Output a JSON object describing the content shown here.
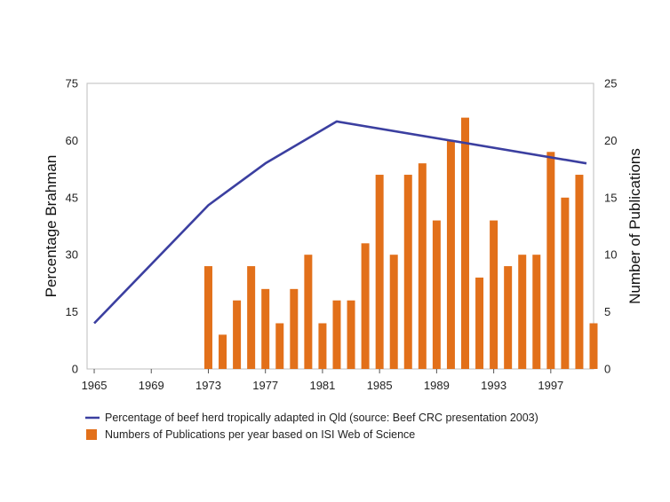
{
  "chart_data": {
    "type": "bar",
    "colors": {
      "bar": "#e2701a",
      "line": "#3b3fa0",
      "frame": "#bdbdbd"
    },
    "ylabel_left": "Percentage Brahman",
    "ylabel_right": "Number of Publications",
    "xlim": [
      1964.5,
      2000
    ],
    "ylim_left": [
      0,
      75
    ],
    "ylim_right": [
      0,
      25
    ],
    "yticks_left": [
      "0",
      "15",
      "30",
      "45",
      "60",
      "75"
    ],
    "yticks_left_values": [
      0,
      15,
      30,
      45,
      60,
      75
    ],
    "yticks_right": [
      "0",
      "5",
      "10",
      "15",
      "20",
      "25"
    ],
    "yticks_right_values": [
      0,
      5,
      10,
      15,
      20,
      25
    ],
    "xticks": [
      "1965",
      "1969",
      "1973",
      "1977",
      "1981",
      "1985",
      "1989",
      "1993",
      "1997"
    ],
    "xticks_values": [
      1965,
      1969,
      1973,
      1977,
      1981,
      1985,
      1989,
      1993,
      1997
    ],
    "grid": false,
    "legend_position": "bottom",
    "series": [
      {
        "name": "Percentage of beef herd tropically adapted in Qld (source: Beef CRC presentation 2003)",
        "type": "line",
        "axis": "left",
        "x": [
          1965,
          1973,
          1977,
          1982,
          1999.5
        ],
        "values": [
          12,
          43,
          54,
          65,
          54
        ]
      },
      {
        "name": "Numbers of Publications per year based on ISI Web of Science",
        "type": "bar",
        "axis": "right",
        "x": [
          1973,
          1974,
          1975,
          1976,
          1977,
          1978,
          1979,
          1980,
          1981,
          1982,
          1983,
          1984,
          1985,
          1986,
          1987,
          1988,
          1989,
          1990,
          1991,
          1992,
          1993,
          1994,
          1995,
          1996,
          1997,
          1998,
          1999,
          2000
        ],
        "values": [
          9,
          3,
          6,
          9,
          7,
          4,
          7,
          10,
          4,
          6,
          6,
          11,
          17,
          10,
          17,
          18,
          13,
          20,
          22,
          8,
          13,
          9,
          10,
          10,
          19,
          15,
          17,
          4
        ]
      }
    ]
  }
}
